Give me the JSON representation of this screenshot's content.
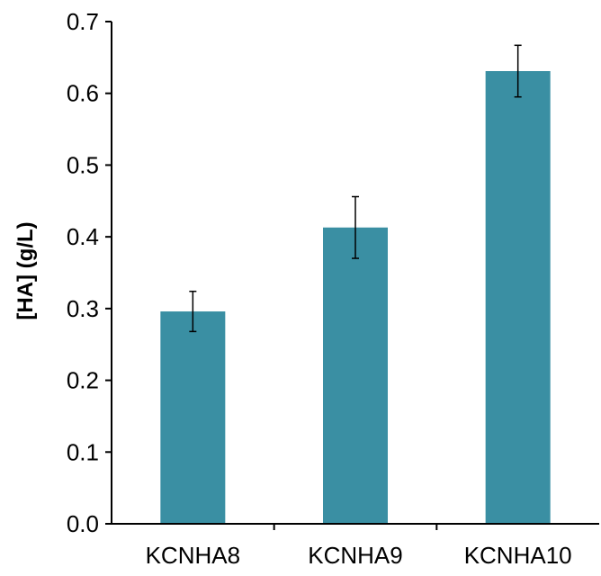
{
  "chart_data": {
    "type": "bar",
    "title": "",
    "xlabel": "",
    "ylabel": "[HA] (g/L)",
    "categories": [
      "KCNHA8",
      "KCNHA9",
      "KCNHA10"
    ],
    "values": [
      0.296,
      0.413,
      0.631
    ],
    "errors": [
      0.028,
      0.043,
      0.036
    ],
    "ylim": [
      0.0,
      0.7
    ],
    "yticks": [
      "0.0",
      "0.1",
      "0.2",
      "0.3",
      "0.4",
      "0.5",
      "0.6",
      "0.7"
    ],
    "grid": false,
    "legend": "none",
    "colors": {
      "bar": "#3a8fa3",
      "axis": "#000000",
      "error_bar": "#000000"
    }
  }
}
